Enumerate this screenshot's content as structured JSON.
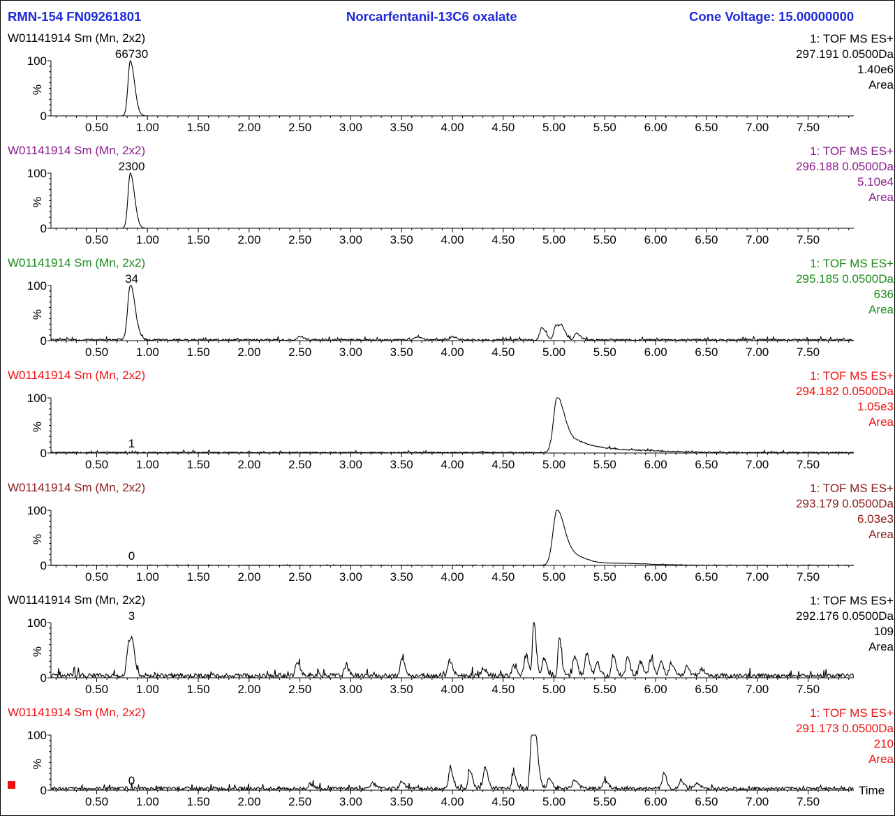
{
  "header": {
    "left": "RMN-154 FN09261801",
    "center": "Norcarfentanil-13C6 oxalate",
    "right": "Cone Voltage: 15.00000000"
  },
  "colors": {
    "header": "#1f2bd6",
    "trace": "#000000",
    "marker": "#ee1111"
  },
  "time_label": "Time",
  "panels": [
    {
      "sample": "W01141914 Sm (Mn, 2x2)",
      "scan": "1: TOF MS ES+",
      "mass": "297.191 0.0500Da",
      "intensity": "1.40e6",
      "mode": "Area",
      "color": "#000000",
      "peak_label": "66730"
    },
    {
      "sample": "W01141914 Sm (Mn, 2x2)",
      "scan": "1: TOF MS ES+",
      "mass": "296.188 0.0500Da",
      "intensity": "5.10e4",
      "mode": "Area",
      "color": "#8b1a8b",
      "peak_label": "2300"
    },
    {
      "sample": "W01141914 Sm (Mn, 2x2)",
      "scan": "1: TOF MS ES+",
      "mass": "295.185 0.0500Da",
      "intensity": "636",
      "mode": "Area",
      "color": "#1a8a1a",
      "peak_label": "34"
    },
    {
      "sample": "W01141914 Sm (Mn, 2x2)",
      "scan": "1: TOF MS ES+",
      "mass": "294.182 0.0500Da",
      "intensity": "1.05e3",
      "mode": "Area",
      "color": "#ee1111",
      "peak_label": "1"
    },
    {
      "sample": "W01141914 Sm (Mn, 2x2)",
      "scan": "1: TOF MS ES+",
      "mass": "293.179 0.0500Da",
      "intensity": "6.03e3",
      "mode": "Area",
      "color": "#8b1a1a",
      "peak_label": "0"
    },
    {
      "sample": "W01141914 Sm (Mn, 2x2)",
      "scan": "1: TOF MS ES+",
      "mass": "292.176 0.0500Da",
      "intensity": "109",
      "mode": "Area",
      "color": "#000000",
      "peak_label": "3"
    },
    {
      "sample": "W01141914 Sm (Mn, 2x2)",
      "scan": "1: TOF MS ES+",
      "mass": "291.173 0.0500Da",
      "intensity": "210",
      "mode": "Area",
      "color": "#ee1111",
      "peak_label": "0"
    }
  ],
  "chart_data": {
    "type": "line",
    "xlabel": "Time",
    "ylabel": "%",
    "xlim": [
      0.05,
      7.95
    ],
    "ylim": [
      0,
      100
    ],
    "x_ticks": [
      "0.50",
      "1.00",
      "1.50",
      "2.00",
      "2.50",
      "3.00",
      "3.50",
      "4.00",
      "4.50",
      "5.00",
      "5.50",
      "6.00",
      "6.50",
      "7.00",
      "7.50"
    ],
    "y_ticks": [
      "0",
      "100"
    ],
    "series": [
      {
        "name": "297.191 0.0500Da",
        "peak_label_x": 0.83,
        "peaks": [
          {
            "x": 0.83,
            "y": 100,
            "w": 0.022
          }
        ],
        "noise": 0.05
      },
      {
        "name": "296.188 0.0500Da",
        "peak_label_x": 0.83,
        "peaks": [
          {
            "x": 0.83,
            "y": 100,
            "w": 0.022
          }
        ],
        "noise": 0.05
      },
      {
        "name": "295.185 0.0500Da",
        "peak_label_x": 0.83,
        "peaks": [
          {
            "x": 0.83,
            "y": 100,
            "w": 0.025
          },
          {
            "x": 4.88,
            "y": 22,
            "w": 0.02
          },
          {
            "x": 5.02,
            "y": 27,
            "w": 0.02
          },
          {
            "x": 5.08,
            "y": 18,
            "w": 0.02
          },
          {
            "x": 5.22,
            "y": 12,
            "w": 0.02
          },
          {
            "x": 2.5,
            "y": 6,
            "w": 0.02
          },
          {
            "x": 3.65,
            "y": 5,
            "w": 0.02
          },
          {
            "x": 4.0,
            "y": 6,
            "w": 0.02
          }
        ],
        "noise": 3
      },
      {
        "name": "294.182 0.0500Da",
        "peak_label_x": 0.83,
        "peaks": [
          {
            "x": 5.03,
            "y": 100,
            "w": 0.035
          },
          {
            "x": 5.15,
            "y": 20,
            "w": 0.05
          },
          {
            "x": 5.3,
            "y": 10,
            "w": 0.08
          },
          {
            "x": 5.6,
            "y": 5,
            "w": 0.2
          }
        ],
        "noise": 2
      },
      {
        "name": "293.179 0.0500Da",
        "peak_label_x": 0.83,
        "peaks": [
          {
            "x": 5.03,
            "y": 100,
            "w": 0.04
          },
          {
            "x": 5.2,
            "y": 15,
            "w": 0.06
          },
          {
            "x": 5.5,
            "y": 4,
            "w": 0.2
          }
        ],
        "noise": 0.6
      },
      {
        "name": "292.176 0.0500Da",
        "peak_label_x": 0.83,
        "peaks": [
          {
            "x": 0.81,
            "y": 55,
            "w": 0.015
          },
          {
            "x": 0.85,
            "y": 50,
            "w": 0.015
          },
          {
            "x": 2.47,
            "y": 27,
            "w": 0.015
          },
          {
            "x": 2.95,
            "y": 18,
            "w": 0.015
          },
          {
            "x": 3.5,
            "y": 32,
            "w": 0.015
          },
          {
            "x": 3.97,
            "y": 28,
            "w": 0.015
          },
          {
            "x": 4.3,
            "y": 15,
            "w": 0.015
          },
          {
            "x": 4.6,
            "y": 20,
            "w": 0.015
          },
          {
            "x": 4.72,
            "y": 35,
            "w": 0.015
          },
          {
            "x": 4.8,
            "y": 100,
            "w": 0.012
          },
          {
            "x": 4.9,
            "y": 30,
            "w": 0.015
          },
          {
            "x": 5.05,
            "y": 70,
            "w": 0.012
          },
          {
            "x": 5.2,
            "y": 35,
            "w": 0.015
          },
          {
            "x": 5.32,
            "y": 40,
            "w": 0.015
          },
          {
            "x": 5.42,
            "y": 25,
            "w": 0.015
          },
          {
            "x": 5.58,
            "y": 38,
            "w": 0.015
          },
          {
            "x": 5.72,
            "y": 33,
            "w": 0.015
          },
          {
            "x": 5.85,
            "y": 25,
            "w": 0.015
          },
          {
            "x": 5.95,
            "y": 28,
            "w": 0.015
          },
          {
            "x": 6.05,
            "y": 25,
            "w": 0.015
          },
          {
            "x": 6.15,
            "y": 22,
            "w": 0.015
          },
          {
            "x": 6.3,
            "y": 15,
            "w": 0.015
          },
          {
            "x": 6.45,
            "y": 12,
            "w": 0.015
          }
        ],
        "noise": 8
      },
      {
        "name": "291.173 0.0500Da",
        "peak_label_x": 0.83,
        "peaks": [
          {
            "x": 3.5,
            "y": 14,
            "w": 0.015
          },
          {
            "x": 3.98,
            "y": 35,
            "w": 0.015
          },
          {
            "x": 4.17,
            "y": 33,
            "w": 0.015
          },
          {
            "x": 4.32,
            "y": 38,
            "w": 0.015
          },
          {
            "x": 4.6,
            "y": 25,
            "w": 0.015
          },
          {
            "x": 4.78,
            "y": 100,
            "w": 0.014
          },
          {
            "x": 4.82,
            "y": 75,
            "w": 0.015
          },
          {
            "x": 4.95,
            "y": 20,
            "w": 0.015
          },
          {
            "x": 5.2,
            "y": 15,
            "w": 0.02
          },
          {
            "x": 5.5,
            "y": 12,
            "w": 0.02
          },
          {
            "x": 6.08,
            "y": 28,
            "w": 0.015
          },
          {
            "x": 6.25,
            "y": 15,
            "w": 0.015
          },
          {
            "x": 6.4,
            "y": 8,
            "w": 0.02
          },
          {
            "x": 2.6,
            "y": 8,
            "w": 0.02
          },
          {
            "x": 3.2,
            "y": 8,
            "w": 0.02
          }
        ],
        "noise": 6
      }
    ]
  }
}
